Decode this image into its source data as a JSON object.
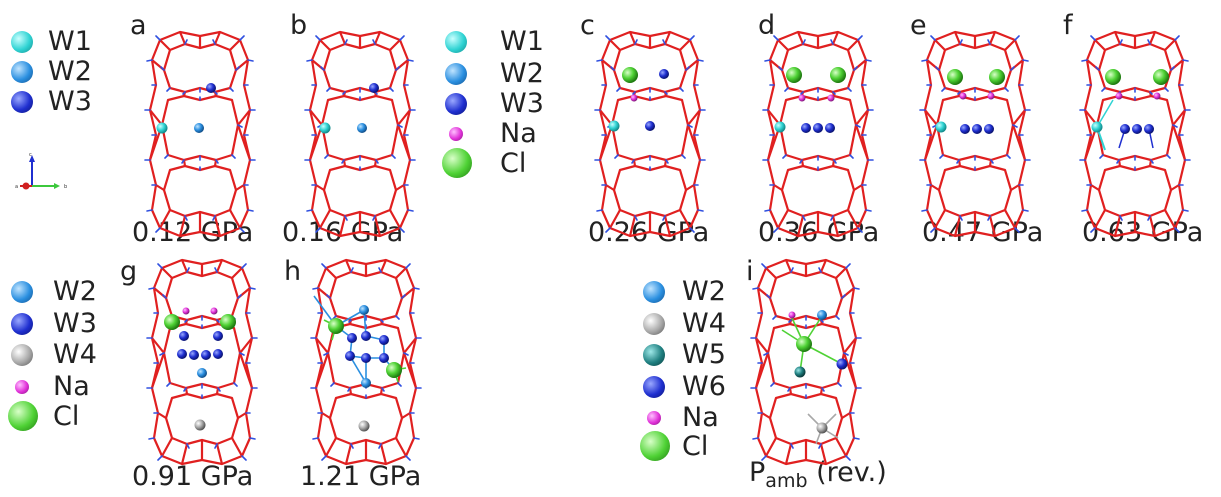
{
  "colors": {
    "W1": "#2fd3d3",
    "W2": "#2a8fe0",
    "W3": "#1f2fd0",
    "W4": "#a8a8a8",
    "W5": "#1f7f80",
    "W6": "#1f2fd0",
    "Na": "#e030d8",
    "Cl": "#4fd235",
    "framework_O": "#e02020",
    "framework_H": "#3050e0"
  },
  "legends": {
    "legend1": [
      "W1",
      "W2",
      "W3"
    ],
    "legend2": [
      "W1",
      "W2",
      "W3",
      "Na",
      "Cl"
    ],
    "legend3": [
      "W2",
      "W3",
      "W4",
      "Na",
      "Cl"
    ],
    "legend4": [
      "W2",
      "W4",
      "W5",
      "W6",
      "Na",
      "Cl"
    ]
  },
  "panels": [
    {
      "letter": "a",
      "pressure": "0.12 GPa"
    },
    {
      "letter": "b",
      "pressure": "0.16 GPa"
    },
    {
      "letter": "c",
      "pressure": "0.26 GPa"
    },
    {
      "letter": "d",
      "pressure": "0.36 GPa"
    },
    {
      "letter": "e",
      "pressure": "0.47 GPa"
    },
    {
      "letter": "f",
      "pressure": "0.63 GPa"
    },
    {
      "letter": "g",
      "pressure": "0.91 GPa"
    },
    {
      "letter": "h",
      "pressure": "1.21 GPa"
    },
    {
      "letter": "i",
      "pressure_main": "P",
      "pressure_sub": "amb",
      "pressure_suffix": " (rev.)"
    }
  ],
  "axes_icon": {
    "y": "c",
    "x": "b",
    "z": "a"
  }
}
